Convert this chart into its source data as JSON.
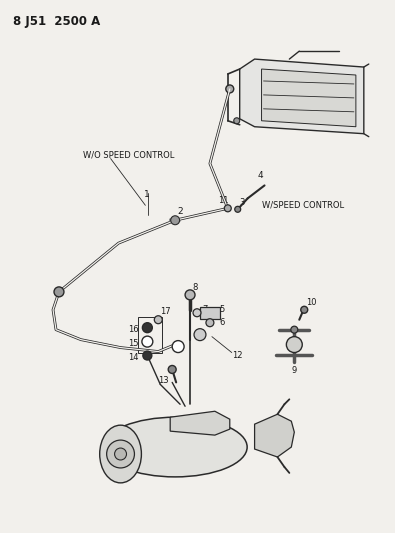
{
  "title": "8 J51  2500 A",
  "bg_color": "#f2f0ec",
  "line_color": "#2a2a2a",
  "text_color": "#1a1a1a",
  "fig_width": 3.95,
  "fig_height": 5.33,
  "dpi": 100,
  "labels": {
    "wo_speed_control": "W/O SPEED CONTROL",
    "w_speed_control": "W/SPEED CONTROL"
  }
}
